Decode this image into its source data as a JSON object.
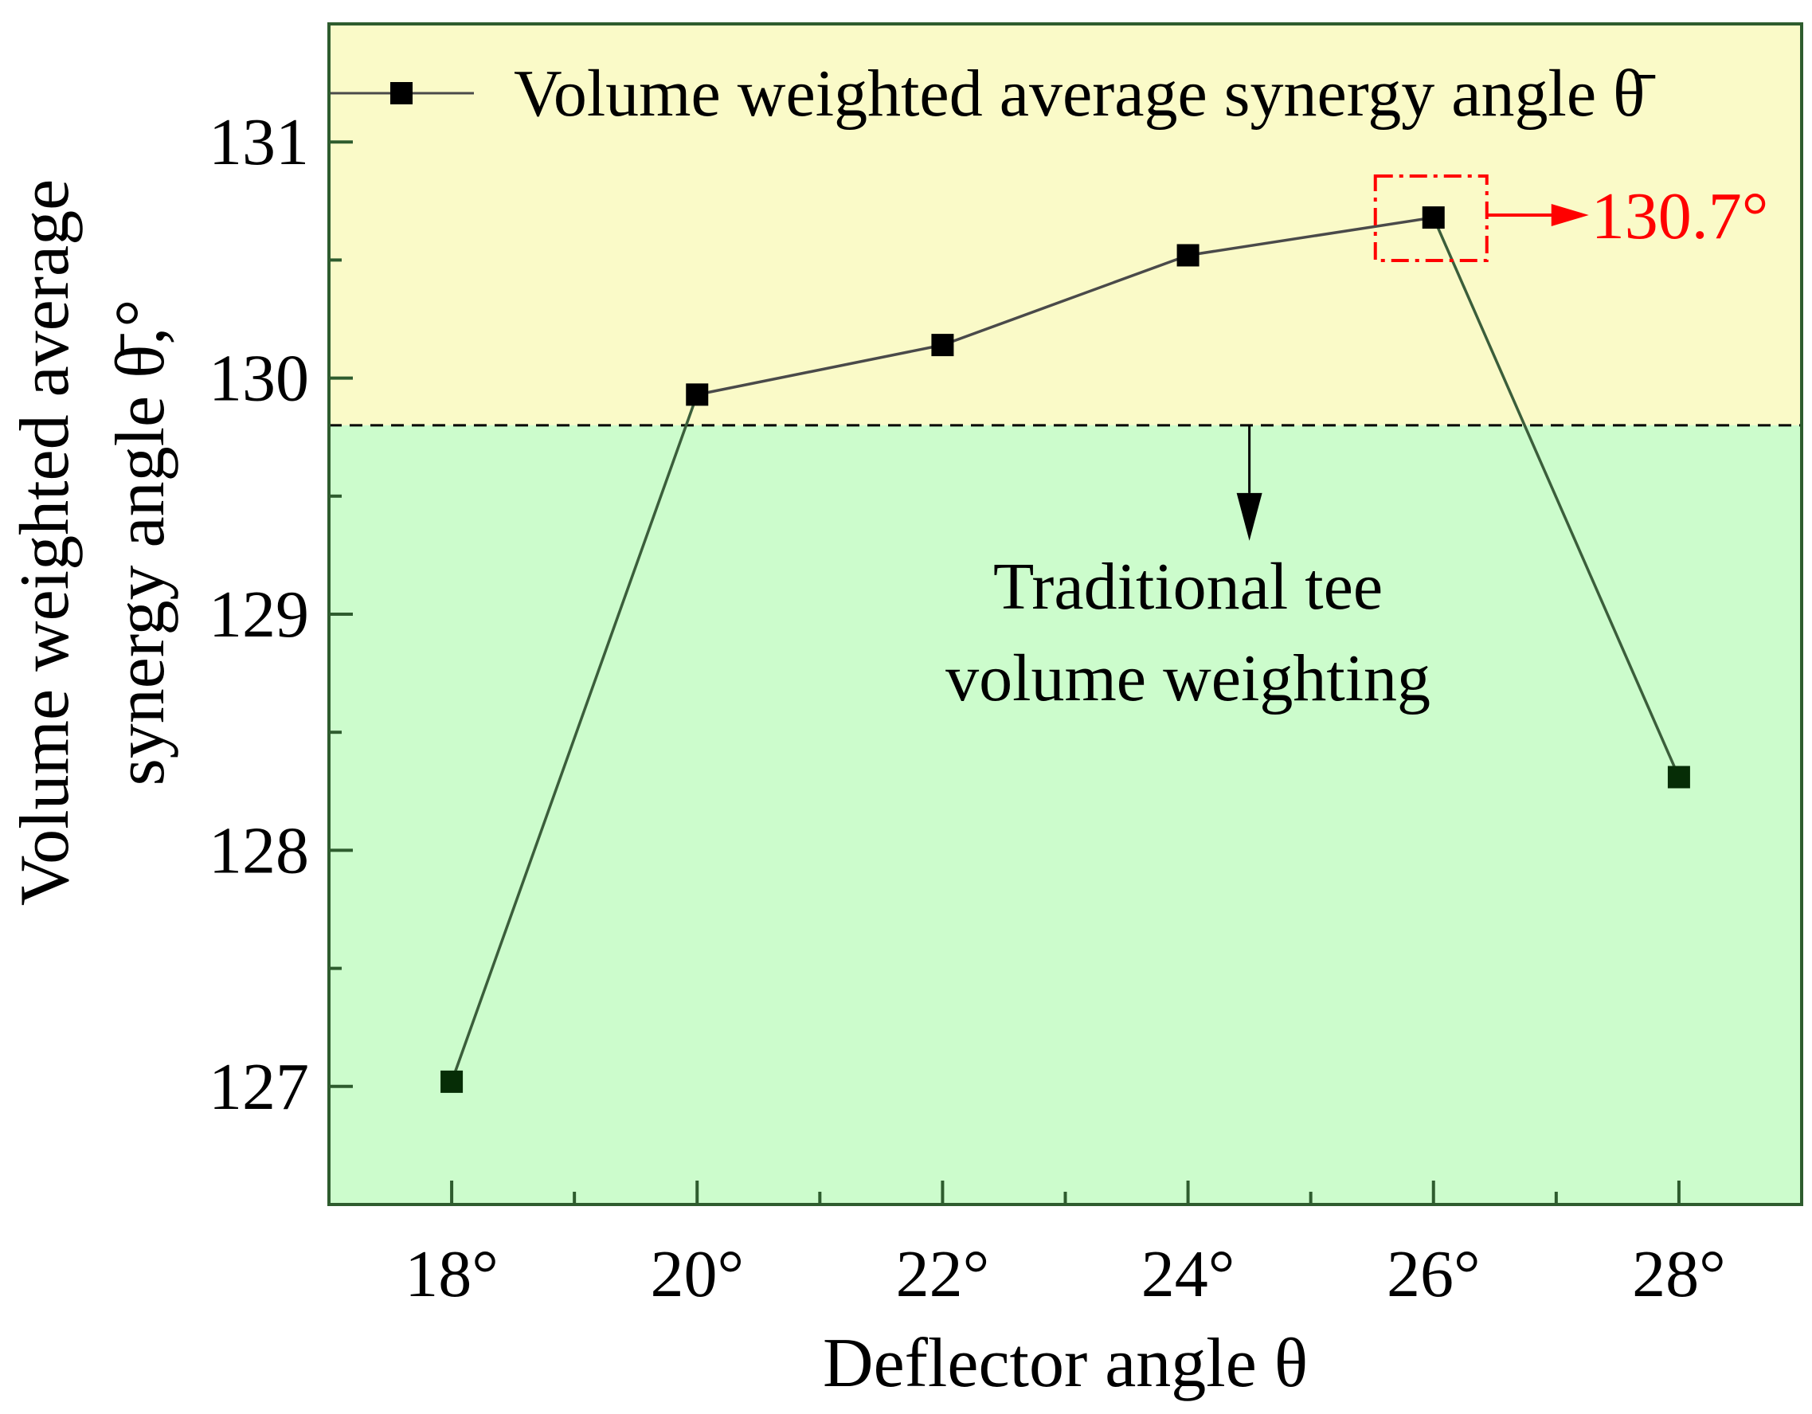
{
  "chart_data": {
    "type": "line",
    "title": "",
    "xlabel": "Deflector angle θ",
    "ylabel_line1": "Volume weighted average",
    "ylabel_line2": "synergy angle θ̄,°",
    "x": [
      18,
      20,
      22,
      24,
      26,
      28
    ],
    "x_tick_labels": [
      "18°",
      "20°",
      "22°",
      "24°",
      "26°",
      "28°"
    ],
    "xlim": [
      17,
      29
    ],
    "ylim": [
      126.5,
      131.5
    ],
    "y_ticks": [
      127,
      128,
      129,
      130,
      131
    ],
    "y_tick_labels": [
      "127",
      "128",
      "129",
      "130",
      "131"
    ],
    "series": [
      {
        "name": "Volume weighted average synergy angle θ̄",
        "values": [
          127.02,
          129.93,
          130.14,
          130.52,
          130.68,
          128.31
        ]
      }
    ],
    "legend_position": "top",
    "reference_line": {
      "value": 129.8,
      "label_line1": "Traditional tee",
      "label_line2": "volume weighting"
    },
    "highlight": {
      "x": 26,
      "label": "130.7°"
    },
    "regions": {
      "above_color": "#fafac8",
      "below_color": "#ccfccc"
    },
    "colors": {
      "line": "#4a4a4a",
      "marker": "#000000",
      "marker_dark": "#062d06",
      "highlight": "#ff0000",
      "frame": "#2e5c2e"
    }
  }
}
